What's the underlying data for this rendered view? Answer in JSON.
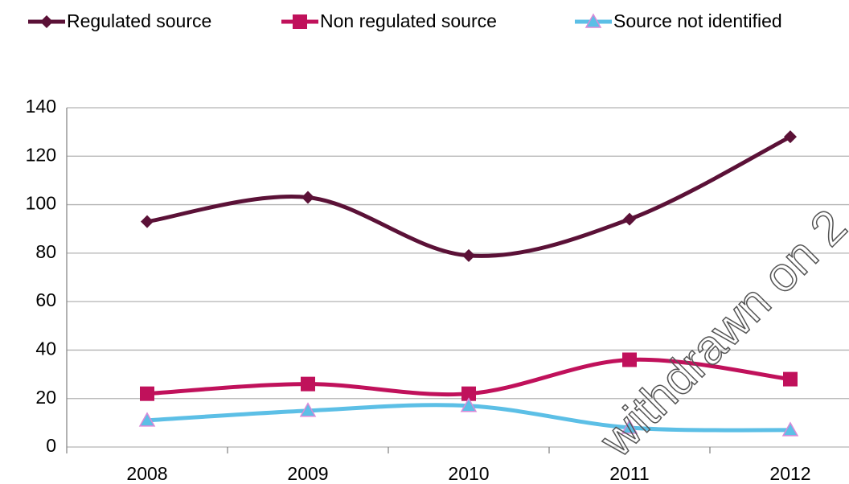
{
  "chart_data": {
    "type": "line",
    "categories": [
      "2008",
      "2009",
      "2010",
      "2011",
      "2012"
    ],
    "series": [
      {
        "name": "Regulated source",
        "color": "#5b1137",
        "marker": "diamond",
        "values": [
          93,
          103,
          79,
          94,
          128
        ]
      },
      {
        "name": "Non regulated source",
        "color": "#c0115b",
        "marker": "square",
        "values": [
          22,
          26,
          22,
          36,
          28
        ]
      },
      {
        "name": "Source not identified",
        "color": "#5cbfe6",
        "marker": "triangle",
        "values": [
          11,
          15,
          17,
          8,
          7
        ]
      }
    ],
    "ylim": [
      0,
      140
    ],
    "yticks": [
      0,
      20,
      40,
      60,
      80,
      100,
      120,
      140
    ],
    "grid": true,
    "legend": "top",
    "smooth": true,
    "annotation": "withdrawn on 2"
  }
}
